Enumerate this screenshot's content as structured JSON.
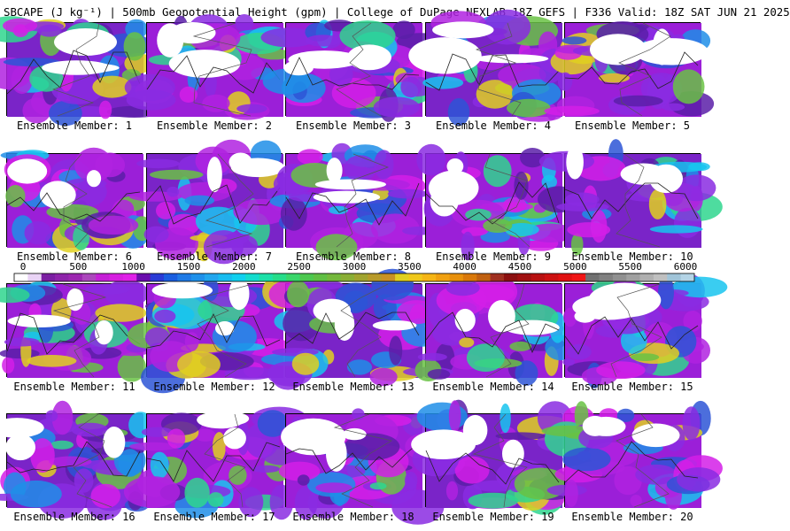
{
  "header": {
    "title": "SBCAPE (J kg⁻¹) | 500mb Geopotential Height (gpm) | College of DuPage NEXLAB 18Z GEFS | F336 Valid: 18Z SAT JUN 21 2025"
  },
  "members": [
    {
      "label": "Ensemble Member: 1"
    },
    {
      "label": "Ensemble Member: 2"
    },
    {
      "label": "Ensemble Member: 3"
    },
    {
      "label": "Ensemble Member: 4"
    },
    {
      "label": "Ensemble Member: 5"
    },
    {
      "label": "Ensemble Member: 6"
    },
    {
      "label": "Ensemble Member: 7"
    },
    {
      "label": "Ensemble Member: 8"
    },
    {
      "label": "Ensemble Member: 9"
    },
    {
      "label": "Ensemble Member: 10"
    },
    {
      "label": "Ensemble Member: 11"
    },
    {
      "label": "Ensemble Member: 12"
    },
    {
      "label": "Ensemble Member: 13"
    },
    {
      "label": "Ensemble Member: 14"
    },
    {
      "label": "Ensemble Member: 15"
    },
    {
      "label": "Ensemble Member: 16"
    },
    {
      "label": "Ensemble Member: 17"
    },
    {
      "label": "Ensemble Member: 18"
    },
    {
      "label": "Ensemble Member: 19"
    },
    {
      "label": "Ensemble Member: 20"
    }
  ],
  "colorbar": {
    "ticks": [
      "0",
      "500",
      "1000",
      "1500",
      "2000",
      "2500",
      "3000",
      "3500",
      "4000",
      "4500",
      "5000",
      "5500",
      "6000"
    ],
    "colors": [
      "#ffffff",
      "#e9d3f5",
      "#7b1fa2",
      "#8e24aa",
      "#9c27b0",
      "#ab47bc",
      "#c51fd6",
      "#d61fe0",
      "#e020e8",
      "#6a0dad",
      "#2a3bd6",
      "#1a5ee0",
      "#1f7ae6",
      "#1f90ea",
      "#22a6ee",
      "#18bcf0",
      "#10d0ef",
      "#14dccd",
      "#1ce0a8",
      "#26dd8a",
      "#3ad66a",
      "#4cc84f",
      "#5fbf43",
      "#74b83c",
      "#8aae35",
      "#a0a42f",
      "#b89a2a",
      "#c89124",
      "#e0d020",
      "#f0c81a",
      "#f5b515",
      "#f0a010",
      "#e8900c",
      "#d9780a",
      "#c06010",
      "#a03020",
      "#8c1010",
      "#a01010",
      "#b81010",
      "#cc1010",
      "#e01010",
      "#f01515",
      "#707070",
      "#808080",
      "#909090",
      "#a0a0a0",
      "#b0b0b0",
      "#c0c0c0",
      "#a0c4d8",
      "#b4d4e6"
    ]
  }
}
